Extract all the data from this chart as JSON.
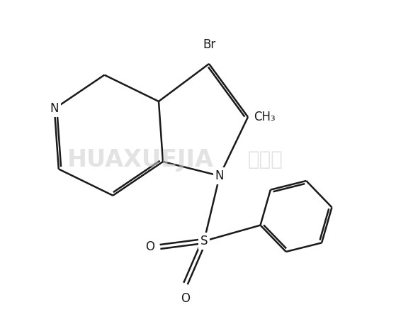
{
  "background_color": "#ffffff",
  "line_color": "#1a1a1a",
  "line_width": 1.8,
  "watermark_latin": "HUAXUEJIA",
  "watermark_chinese": "化学加",
  "label_Br": "Br",
  "label_CH3": "CH₃",
  "label_N": "N",
  "label_S": "S",
  "label_O": "O",
  "label_N_pyr": "N",
  "text_color": "#1a1a1a",
  "font_size": 12
}
